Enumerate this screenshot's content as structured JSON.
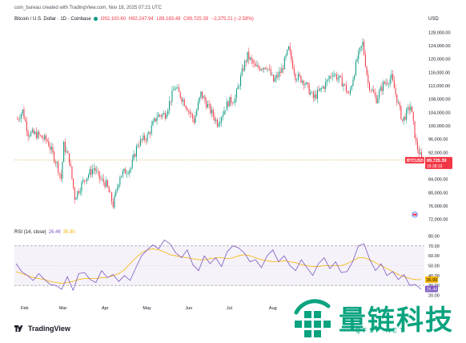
{
  "header": {
    "creator_line": "coin_bureau created with TradingView.com, Nov 18, 2025 07:21 UTC",
    "symbol_line": "Bitcoin / U.S. Dollar · 1D · Coinbase",
    "open": "O92,100.60",
    "high": "H92,247.94",
    "low": "L89,183.48",
    "close": "C89,725.39",
    "change": "−2,375.21 (−2.58%)",
    "currency": "USD"
  },
  "price_tag": {
    "symbol": "BTCUSD",
    "price": "89,725.39",
    "countdown": "16:38:19"
  },
  "rsi_header": {
    "label": "RSI (14, close)",
    "rsi_value": "26.46",
    "ma_value": "35.90"
  },
  "rsi_tags": {
    "ma": "35.90",
    "rsi": "26.46"
  },
  "months": [
    "Feb",
    "Mar",
    "Apr",
    "May",
    "Jun",
    "Jul",
    "Aug"
  ],
  "price_axis": [
    "128,000.00",
    "124,000.00",
    "120,000.00",
    "116,000.00",
    "112,000.00",
    "108,000.00",
    "104,000.00",
    "100,000.00",
    "96,000.00",
    "92,000.00",
    "88,000.00",
    "84,000.00",
    "80,000.00",
    "76,000.00",
    "72,000.00"
  ],
  "rsi_axis": [
    "80.00",
    "70.00",
    "60.00",
    "50.00",
    "40.00",
    "30.00",
    "20.00"
  ],
  "logo": {
    "text": "TradingView"
  },
  "watermark": {
    "cn": "量链科技",
    "en": "QFSP.NET"
  },
  "colors": {
    "up": "#089981",
    "down": "#f23645",
    "rsi": "#7e57c2",
    "rsi_ma": "#f5b400",
    "band": "#7e57c2",
    "wm": "#0aa37f"
  },
  "chart_data": [
    {
      "type": "candlestick",
      "title": "Bitcoin / U.S. Dollar · 1D · Coinbase",
      "ylabel": "USD",
      "ylim": [
        70000,
        130000
      ],
      "x": [
        "Feb",
        "Mar",
        "Apr",
        "May",
        "Jun",
        "Jul",
        "Aug"
      ],
      "series": [
        {
          "name": "BTCUSD",
          "trend": [
            [
              "2025-01-27",
              102000
            ],
            [
              "2025-01-31",
              104500
            ],
            [
              "2025-02-04",
              97800
            ],
            [
              "2025-02-10",
              97400
            ],
            [
              "2025-02-18",
              95500
            ],
            [
              "2025-02-25",
              88500
            ],
            [
              "2025-02-28",
              84300
            ],
            [
              "2025-03-02",
              94200
            ],
            [
              "2025-03-06",
              89800
            ],
            [
              "2025-03-10",
              78600
            ],
            [
              "2025-03-17",
              84000
            ],
            [
              "2025-03-24",
              87400
            ],
            [
              "2025-03-28",
              84300
            ],
            [
              "2025-04-02",
              82500
            ],
            [
              "2025-04-07",
              76300
            ],
            [
              "2025-04-12",
              85200
            ],
            [
              "2025-04-20",
              87500
            ],
            [
              "2025-04-25",
              94700
            ],
            [
              "2025-05-02",
              96800
            ],
            [
              "2025-05-09",
              103000
            ],
            [
              "2025-05-15",
              103500
            ],
            [
              "2025-05-22",
              111600
            ],
            [
              "2025-05-28",
              107800
            ],
            [
              "2025-06-05",
              101500
            ],
            [
              "2025-06-10",
              109600
            ],
            [
              "2025-06-17",
              104500
            ],
            [
              "2025-06-22",
              100900
            ],
            [
              "2025-06-30",
              107100
            ],
            [
              "2025-07-05",
              108200
            ],
            [
              "2025-07-11",
              117500
            ],
            [
              "2025-07-14",
              121000
            ],
            [
              "2025-07-20",
              117300
            ],
            [
              "2025-07-28",
              118000
            ],
            [
              "2025-08-02",
              113300
            ],
            [
              "2025-08-08",
              116700
            ],
            [
              "2025-08-13",
              123000
            ],
            [
              "2025-08-18",
              115000
            ],
            [
              "2025-08-24",
              113500
            ],
            [
              "2025-08-31",
              108300
            ],
            [
              "2025-09-08",
              112000
            ],
            [
              "2025-09-14",
              116000
            ],
            [
              "2025-09-22",
              112600
            ],
            [
              "2025-09-26",
              109000
            ],
            [
              "2025-10-02",
              120000
            ],
            [
              "2025-10-06",
              124700
            ],
            [
              "2025-10-10",
              112800
            ],
            [
              "2025-10-16",
              108000
            ],
            [
              "2025-10-21",
              112400
            ],
            [
              "2025-10-27",
              114400
            ],
            [
              "2025-11-04",
              101500
            ],
            [
              "2025-11-10",
              106000
            ],
            [
              "2025-11-14",
              94500
            ],
            [
              "2025-11-18",
              89725
            ]
          ]
        }
      ]
    },
    {
      "type": "line",
      "title": "RSI (14, close)",
      "ylim": [
        18,
        82
      ],
      "x": [
        "Feb",
        "Mar",
        "Apr",
        "May",
        "Jun",
        "Jul",
        "Aug"
      ],
      "levels": [
        70,
        30
      ],
      "series": [
        {
          "name": "RSI",
          "trend": [
            52,
            44,
            40,
            35,
            42,
            36,
            31,
            30,
            26,
            39,
            25,
            42,
            43,
            36,
            33,
            45,
            38,
            41,
            34,
            40,
            35,
            48,
            60,
            66,
            71,
            67,
            76,
            72,
            63,
            58,
            66,
            51,
            45,
            60,
            52,
            58,
            49,
            64,
            70,
            68,
            63,
            54,
            56,
            48,
            60,
            66,
            54,
            60,
            50,
            45,
            56,
            48,
            40,
            52,
            58,
            47,
            54,
            43,
            44,
            54,
            70,
            72,
            56,
            45,
            52,
            40,
            44,
            36,
            41,
            30,
            31,
            26
          ]
        },
        {
          "name": "RSI MA",
          "trend": [
            44,
            42,
            40,
            38,
            37,
            36,
            34,
            33,
            32,
            33,
            34,
            36,
            37,
            37,
            37,
            38,
            38,
            40,
            42,
            46,
            52,
            58,
            63,
            66,
            67,
            66,
            64,
            61,
            60,
            59,
            58,
            57,
            56,
            56,
            57,
            58,
            58,
            57,
            58,
            60,
            61,
            60,
            58,
            56,
            55,
            54,
            54,
            55,
            54,
            53,
            51,
            50,
            49,
            49,
            50,
            50,
            50,
            50,
            52,
            55,
            58,
            58,
            56,
            53,
            50,
            47,
            44,
            41,
            39,
            37,
            36,
            35.9
          ]
        }
      ]
    }
  ]
}
